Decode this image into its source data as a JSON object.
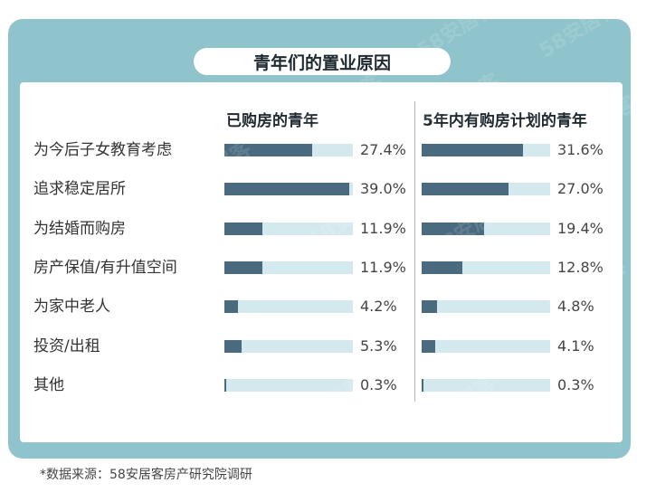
{
  "title": "青年们的置业原因",
  "watermark_text": "58安居客",
  "footer": "*数据来源：58安居客房产研究院调研",
  "colors": {
    "frame": "#90c4cc",
    "bar_fill": "#4a6b7f",
    "bar_track": "#d4e9ee"
  },
  "chart_data": {
    "type": "bar",
    "orientation": "horizontal",
    "categories": [
      "为今后子女教育考虑",
      "追求稳定居所",
      "为结婚而购房",
      "房产保值/有升值空间",
      "为家中老人",
      "投资/出租",
      "其他"
    ],
    "series": [
      {
        "name": "已购房的青年",
        "values": [
          27.4,
          39.0,
          11.9,
          11.9,
          4.2,
          5.3,
          0.3
        ],
        "labels": [
          "27.4%",
          "39.0%",
          "11.9%",
          "11.9%",
          "4.2%",
          "5.3%",
          "0.3%"
        ]
      },
      {
        "name": "5年内有购房计划的青年",
        "values": [
          31.6,
          27.0,
          19.4,
          12.8,
          4.8,
          4.1,
          0.3
        ],
        "labels": [
          "31.6%",
          "27.0%",
          "19.4%",
          "12.8%",
          "4.8%",
          "4.1%",
          "0.3%"
        ]
      }
    ],
    "value_max": 40,
    "value_unit": "%",
    "grid": false
  }
}
